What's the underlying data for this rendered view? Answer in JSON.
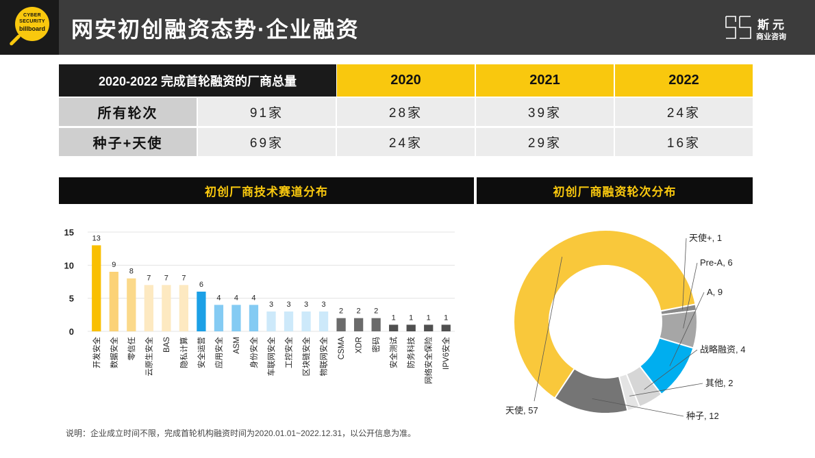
{
  "header": {
    "logo_lines": [
      "CYBER",
      "SECURITY",
      "billboard"
    ],
    "title": "网安初创融资态势·企业融资",
    "brand_name": "斯元",
    "brand_sub": "商业咨询"
  },
  "summary_table": {
    "title": "2020-2022 完成首轮融资的厂商总量",
    "years": [
      "2020",
      "2021",
      "2022"
    ],
    "rows": [
      {
        "label": "所有轮次",
        "values": [
          "91家",
          "28家",
          "39家",
          "24家"
        ]
      },
      {
        "label": "种子+天使",
        "values": [
          "69家",
          "24家",
          "29家",
          "16家"
        ]
      }
    ]
  },
  "sections": {
    "left_title": "初创厂商技术赛道分布",
    "right_title": "初创厂商融资轮次分布"
  },
  "chart_data": [
    {
      "type": "bar",
      "categories": [
        "开发安全",
        "数据安全",
        "零信任",
        "云原生安全",
        "BAS",
        "隐私计算",
        "安全运营",
        "应用安全",
        "ASM",
        "身份安全",
        "车联网安全",
        "工控安全",
        "区块链安全",
        "物联网安全",
        "CSMA",
        "XDR",
        "密码",
        "安全测试",
        "防务科技",
        "网络安全保险",
        "IPV6安全"
      ],
      "values": [
        13,
        9,
        8,
        7,
        7,
        7,
        6,
        4,
        4,
        4,
        3,
        3,
        3,
        3,
        2,
        2,
        2,
        1,
        1,
        1,
        1
      ],
      "colors": [
        "#f9bf00",
        "#fbd277",
        "#fbd98a",
        "#fde9c1",
        "#fde9c1",
        "#fde9c1",
        "#1ca0e6",
        "#84cbf3",
        "#84cbf3",
        "#84cbf3",
        "#cde9fa",
        "#cde9fa",
        "#cde9fa",
        "#cde9fa",
        "#6b6b6b",
        "#6b6b6b",
        "#6b6b6b",
        "#505050",
        "#505050",
        "#505050",
        "#505050"
      ],
      "yticks": [
        0,
        5,
        10,
        15
      ],
      "ylim": [
        0,
        15
      ],
      "grid": true
    },
    {
      "type": "pie",
      "donut": true,
      "slices": [
        {
          "label": "天使, 57",
          "value": 57,
          "color": "#f9c83b"
        },
        {
          "label": "天使+, 1",
          "value": 1,
          "color": "#8a8a8a"
        },
        {
          "label": "Pre-A, 6",
          "value": 6,
          "color": "#a6a6a6"
        },
        {
          "label": "A, 9",
          "value": 9,
          "color": "#00aeef"
        },
        {
          "label": "战略融资, 4",
          "value": 4,
          "color": "#d6d6d6"
        },
        {
          "label": "其他, 2",
          "value": 2,
          "color": "#e4e4e4"
        },
        {
          "label": "种子, 12",
          "value": 12,
          "color": "#757575"
        }
      ]
    }
  ],
  "footnote": "说明：企业成立时间不限，完成首轮机构融资时间为2020.01.01~2022.12.31，以公开信息为准。"
}
